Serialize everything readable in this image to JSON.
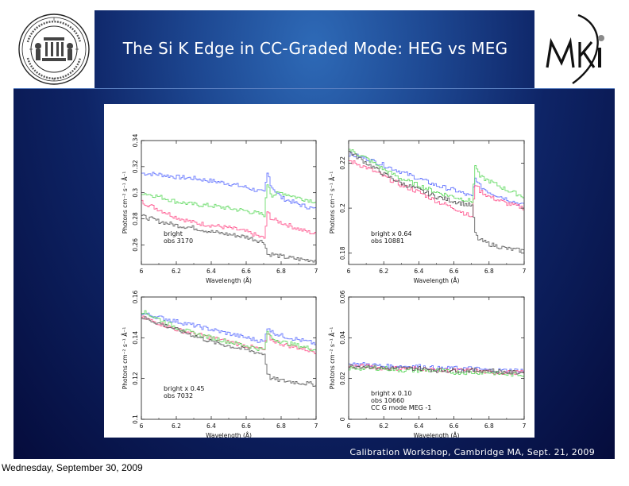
{
  "slide": {
    "title": "The Si K Edge in CC-Graded Mode: HEG vs MEG",
    "footer": "Calibration Workshop, Cambridge MA, Sept. 21, 2009",
    "date_stamp": "Wednesday, September 30, 2009",
    "logos": [
      "mit-seal",
      "mki-logo"
    ]
  },
  "colors": {
    "series": [
      "#5a6cff",
      "#ff4f8a",
      "#5cd85c",
      "#555555"
    ]
  },
  "chart_data": [
    {
      "type": "line",
      "xlabel": "Wavelength (Å)",
      "ylabel": "Photons cm⁻² s⁻¹ Å⁻¹",
      "xlim": [
        6,
        7
      ],
      "ylim": [
        0.245,
        0.34
      ],
      "xticks": [
        "6",
        "6.2",
        "6.4",
        "6.6",
        "6.8",
        "7"
      ],
      "yticks": [
        {
          "value": 0.26,
          "label": "0.26"
        },
        {
          "value": 0.28,
          "label": "0.28"
        },
        {
          "value": 0.3,
          "label": "0.3"
        },
        {
          "value": 0.32,
          "label": "0.32"
        },
        {
          "value": 0.34,
          "label": "0.34"
        }
      ],
      "annotation": [
        "bright",
        "obs 3170"
      ],
      "series": [
        {
          "x": [
            6.0,
            6.1,
            6.2,
            6.3,
            6.4,
            6.5,
            6.6,
            6.7,
            6.72,
            6.74,
            6.8,
            6.9,
            7.0
          ],
          "values": [
            0.315,
            0.314,
            0.312,
            0.311,
            0.309,
            0.307,
            0.304,
            0.3,
            0.316,
            0.305,
            0.296,
            0.291,
            0.287
          ]
        },
        {
          "x": [
            6.0,
            6.1,
            6.2,
            6.3,
            6.4,
            6.5,
            6.6,
            6.7,
            6.72,
            6.74,
            6.8,
            6.9,
            7.0
          ],
          "values": [
            0.293,
            0.287,
            0.281,
            0.277,
            0.275,
            0.273,
            0.27,
            0.265,
            0.286,
            0.28,
            0.277,
            0.272,
            0.268
          ]
        },
        {
          "x": [
            6.0,
            6.1,
            6.2,
            6.3,
            6.4,
            6.5,
            6.6,
            6.7,
            6.72,
            6.74,
            6.8,
            6.9,
            7.0
          ],
          "values": [
            0.3,
            0.297,
            0.293,
            0.291,
            0.29,
            0.288,
            0.286,
            0.283,
            0.309,
            0.298,
            0.3,
            0.296,
            0.293
          ]
        },
        {
          "x": [
            6.0,
            6.1,
            6.2,
            6.3,
            6.4,
            6.5,
            6.6,
            6.7,
            6.72,
            6.74,
            6.8,
            6.9,
            7.0
          ],
          "values": [
            0.282,
            0.278,
            0.275,
            0.273,
            0.27,
            0.268,
            0.266,
            0.262,
            0.252,
            0.253,
            0.251,
            0.249,
            0.248
          ]
        }
      ]
    },
    {
      "type": "line",
      "xlabel": "Wavelength (Å)",
      "ylabel": "Photons cm⁻² s⁻¹ Å⁻¹",
      "xlim": [
        6,
        7
      ],
      "ylim": [
        0.175,
        0.23
      ],
      "xticks": [
        "6",
        "6.2",
        "6.4",
        "6.6",
        "6.8",
        "7"
      ],
      "yticks": [
        {
          "value": 0.18,
          "label": "0.18"
        },
        {
          "value": 0.2,
          "label": "0.2"
        },
        {
          "value": 0.22,
          "label": "0.22"
        }
      ],
      "annotation": [
        "bright x 0.64",
        "obs 10881"
      ],
      "series": [
        {
          "x": [
            6.0,
            6.1,
            6.2,
            6.3,
            6.4,
            6.5,
            6.6,
            6.7,
            6.72,
            6.74,
            6.8,
            6.9,
            7.0
          ],
          "values": [
            0.224,
            0.222,
            0.219,
            0.216,
            0.213,
            0.21,
            0.208,
            0.205,
            0.214,
            0.21,
            0.207,
            0.204,
            0.201
          ]
        },
        {
          "x": [
            6.0,
            6.1,
            6.2,
            6.3,
            6.4,
            6.5,
            6.6,
            6.7,
            6.72,
            6.74,
            6.8,
            6.9,
            7.0
          ],
          "values": [
            0.221,
            0.218,
            0.214,
            0.21,
            0.207,
            0.203,
            0.2,
            0.196,
            0.212,
            0.208,
            0.205,
            0.202,
            0.2
          ]
        },
        {
          "x": [
            6.0,
            6.1,
            6.2,
            6.3,
            6.4,
            6.5,
            6.6,
            6.7,
            6.72,
            6.74,
            6.8,
            6.9,
            7.0
          ],
          "values": [
            0.226,
            0.222,
            0.217,
            0.213,
            0.21,
            0.207,
            0.205,
            0.203,
            0.22,
            0.214,
            0.212,
            0.208,
            0.205
          ]
        },
        {
          "x": [
            6.0,
            6.1,
            6.2,
            6.3,
            6.4,
            6.5,
            6.6,
            6.7,
            6.72,
            6.74,
            6.8,
            6.9,
            7.0
          ],
          "values": [
            0.225,
            0.22,
            0.215,
            0.211,
            0.208,
            0.205,
            0.203,
            0.201,
            0.188,
            0.186,
            0.184,
            0.182,
            0.181
          ]
        }
      ]
    },
    {
      "type": "line",
      "xlabel": "Wavelength (Å)",
      "ylabel": "Photons cm⁻² s⁻¹ Å⁻¹",
      "xlim": [
        6,
        7
      ],
      "ylim": [
        0.1,
        0.16
      ],
      "xticks": [
        "6",
        "6.2",
        "6.4",
        "6.6",
        "6.8",
        "7"
      ],
      "yticks": [
        {
          "value": 0.1,
          "label": "0.1"
        },
        {
          "value": 0.12,
          "label": "0.12"
        },
        {
          "value": 0.14,
          "label": "0.14"
        },
        {
          "value": 0.16,
          "label": "0.16"
        }
      ],
      "annotation": [
        "bright x 0.45",
        "obs 7032"
      ],
      "series": [
        {
          "x": [
            6.0,
            6.1,
            6.2,
            6.3,
            6.4,
            6.5,
            6.6,
            6.7,
            6.72,
            6.74,
            6.8,
            6.9,
            7.0
          ],
          "values": [
            0.152,
            0.15,
            0.148,
            0.146,
            0.144,
            0.142,
            0.14,
            0.138,
            0.146,
            0.143,
            0.141,
            0.139,
            0.137
          ]
        },
        {
          "x": [
            6.0,
            6.1,
            6.2,
            6.3,
            6.4,
            6.5,
            6.6,
            6.7,
            6.72,
            6.74,
            6.8,
            6.9,
            7.0
          ],
          "values": [
            0.15,
            0.147,
            0.144,
            0.142,
            0.14,
            0.138,
            0.136,
            0.134,
            0.142,
            0.139,
            0.137,
            0.135,
            0.133
          ]
        },
        {
          "x": [
            6.0,
            6.1,
            6.2,
            6.3,
            6.4,
            6.5,
            6.6,
            6.7,
            6.72,
            6.74,
            6.8,
            6.9,
            7.0
          ],
          "values": [
            0.153,
            0.149,
            0.145,
            0.142,
            0.14,
            0.138,
            0.136,
            0.134,
            0.143,
            0.14,
            0.138,
            0.136,
            0.134
          ]
        },
        {
          "x": [
            6.0,
            6.1,
            6.2,
            6.3,
            6.4,
            6.5,
            6.6,
            6.7,
            6.72,
            6.74,
            6.8,
            6.9,
            7.0
          ],
          "values": [
            0.15,
            0.147,
            0.144,
            0.141,
            0.138,
            0.136,
            0.134,
            0.132,
            0.122,
            0.12,
            0.119,
            0.118,
            0.117
          ]
        }
      ]
    },
    {
      "type": "line",
      "xlabel": "Wavelength (Å)",
      "ylabel": "Photons cm⁻² s⁻¹ Å⁻¹",
      "xlim": [
        6,
        7
      ],
      "ylim": [
        0,
        0.06
      ],
      "xticks": [
        "6",
        "6.2",
        "6.4",
        "6.6",
        "6.8",
        "7"
      ],
      "yticks": [
        {
          "value": 0,
          "label": "0"
        },
        {
          "value": 0.02,
          "label": "0.02"
        },
        {
          "value": 0.04,
          "label": "0.04"
        },
        {
          "value": 0.06,
          "label": "0.06"
        }
      ],
      "annotation": [
        "bright x 0.10",
        "obs 10660",
        "CC G mode MEG -1"
      ],
      "series": [
        {
          "x": [
            6.0,
            6.1,
            6.2,
            6.3,
            6.4,
            6.5,
            6.6,
            6.7,
            6.8,
            6.9,
            7.0
          ],
          "values": [
            0.027,
            0.027,
            0.026,
            0.026,
            0.026,
            0.025,
            0.025,
            0.025,
            0.024,
            0.024,
            0.024
          ]
        },
        {
          "x": [
            6.0,
            6.1,
            6.2,
            6.3,
            6.4,
            6.5,
            6.6,
            6.7,
            6.8,
            6.9,
            7.0
          ],
          "values": [
            0.026,
            0.026,
            0.025,
            0.025,
            0.025,
            0.024,
            0.024,
            0.024,
            0.023,
            0.023,
            0.023
          ]
        },
        {
          "x": [
            6.0,
            6.1,
            6.2,
            6.3,
            6.4,
            6.5,
            6.6,
            6.7,
            6.8,
            6.9,
            7.0
          ],
          "values": [
            0.025,
            0.025,
            0.025,
            0.024,
            0.024,
            0.024,
            0.023,
            0.023,
            0.023,
            0.022,
            0.022
          ]
        },
        {
          "x": [
            6.0,
            6.1,
            6.2,
            6.3,
            6.4,
            6.5,
            6.6,
            6.7,
            6.8,
            6.9,
            7.0
          ],
          "values": [
            0.026,
            0.026,
            0.025,
            0.025,
            0.025,
            0.024,
            0.024,
            0.024,
            0.024,
            0.023,
            0.023
          ]
        }
      ]
    }
  ]
}
